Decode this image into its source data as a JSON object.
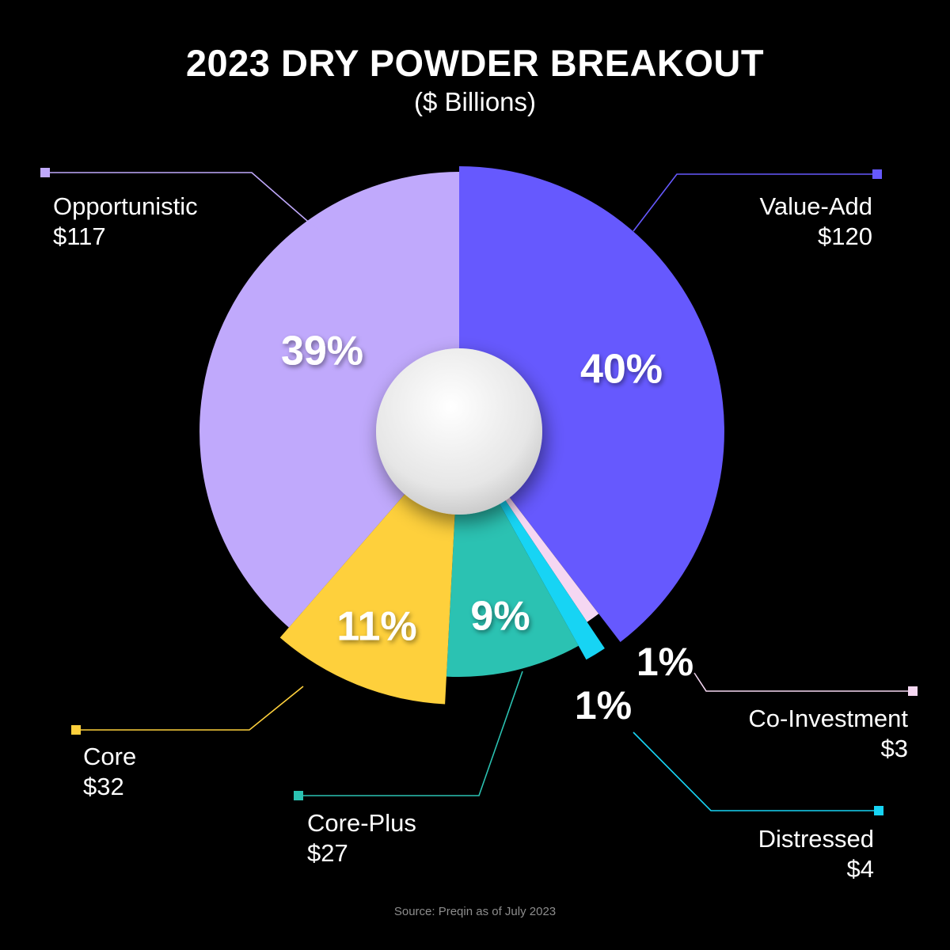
{
  "title": "2023 DRY POWDER BREAKOUT",
  "subtitle": "($ Billions)",
  "source": "Source: Preqin as of July 2023",
  "chart_data": {
    "type": "pie",
    "title": "2023 DRY POWDER BREAKOUT",
    "subtitle": "($ Billions)",
    "unit": "$ Billions",
    "slices": [
      {
        "key": "value_add",
        "name": "Value-Add",
        "value": 120,
        "value_label": "$120",
        "percent": 40,
        "percent_label": "40%",
        "color": "#6659fe"
      },
      {
        "key": "co_investment",
        "name": "Co-Investment",
        "value": 3,
        "value_label": "$3",
        "percent": 1,
        "percent_label": "1%",
        "color": "#f5d7f2"
      },
      {
        "key": "distressed",
        "name": "Distressed",
        "value": 4,
        "value_label": "$4",
        "percent": 1,
        "percent_label": "1%",
        "color": "#17d4f4"
      },
      {
        "key": "core_plus",
        "name": "Core-Plus",
        "value": 27,
        "value_label": "$27",
        "percent": 9,
        "percent_label": "9%",
        "color": "#2bc2b2"
      },
      {
        "key": "core",
        "name": "Core",
        "value": 32,
        "value_label": "$32",
        "percent": 11,
        "percent_label": "11%",
        "color": "#fed03c"
      },
      {
        "key": "opportunistic",
        "name": "Opportunistic",
        "value": 117,
        "value_label": "$117",
        "percent": 39,
        "percent_label": "39%",
        "color": "#c0a9fc"
      }
    ]
  }
}
